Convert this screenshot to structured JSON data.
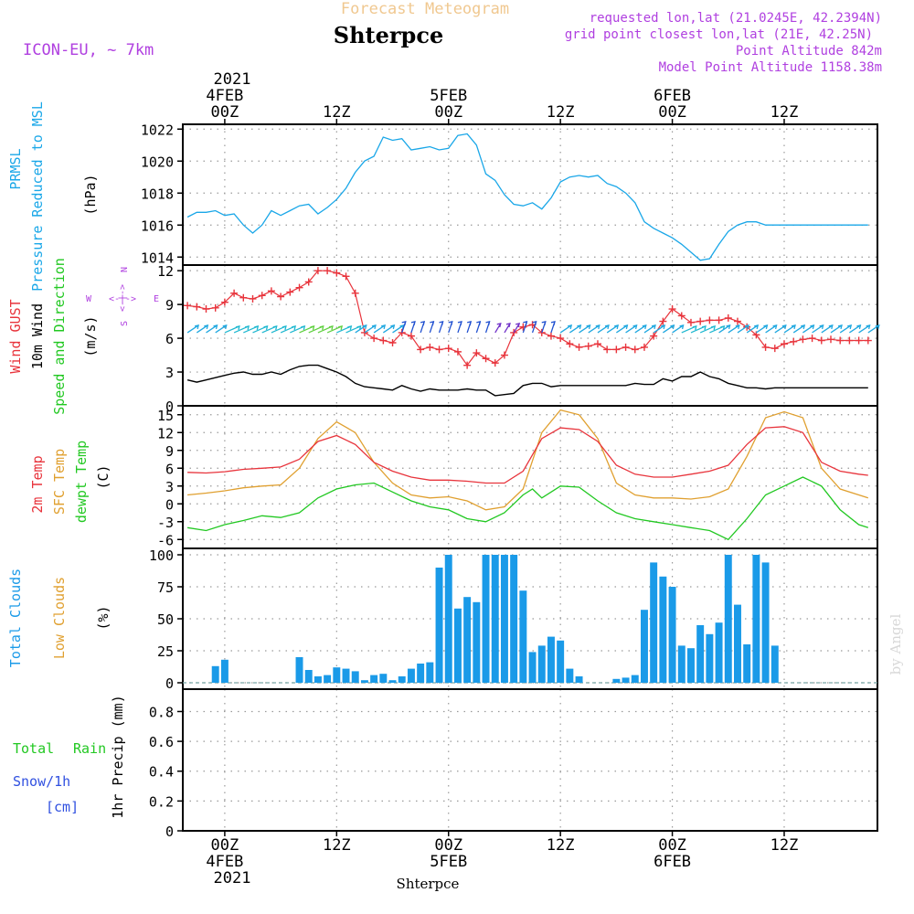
{
  "header": {
    "title": "Forecast Meteogram",
    "station": "Shterpce",
    "model": "ICON-EU, ~ 7km",
    "requested": "requested lon,lat (21.0245E, 42.2394N)",
    "gridpoint": "grid point closest lon,lat (21E, 42.25N)",
    "point_alt": "Point Altitude 842m",
    "model_alt": "Model Point Altitude 1158.38m",
    "footer_station": "Shterpce",
    "signature": "by Angel"
  },
  "time_axis": {
    "top_year": "2021",
    "top_labels": [
      {
        "h": 0,
        "time": "00Z",
        "date": "4FEB"
      },
      {
        "h": 12,
        "time": "12Z",
        "date": ""
      },
      {
        "h": 24,
        "time": "00Z",
        "date": "5FEB"
      },
      {
        "h": 36,
        "time": "12Z",
        "date": ""
      },
      {
        "h": 48,
        "time": "00Z",
        "date": "6FEB"
      },
      {
        "h": 60,
        "time": "12Z",
        "date": ""
      }
    ],
    "bottom_year": "2021",
    "bottom_labels": [
      {
        "h": 0,
        "time": "00Z",
        "date": "4FEB"
      },
      {
        "h": 12,
        "time": "12Z",
        "date": ""
      },
      {
        "h": 24,
        "time": "00Z",
        "date": "5FEB"
      },
      {
        "h": 36,
        "time": "12Z",
        "date": ""
      },
      {
        "h": 48,
        "time": "00Z",
        "date": "6FEB"
      },
      {
        "h": 60,
        "time": "12Z",
        "date": ""
      }
    ]
  },
  "labels": {
    "pressure": [
      "PRMSL",
      "Pressure Reduced to MSL"
    ],
    "pressure_unit": "(hPa)",
    "wind": [
      "Wind GUST",
      "10m Wind",
      "Speed and Direction"
    ],
    "wind_unit": "(m/s)",
    "compass": {
      "n": "N",
      "s": "S",
      "w": "W",
      "e": "E",
      "arrow": "<-|->"
    },
    "temp": [
      "2m Temp",
      "SFC Temp",
      "dewpt Temp"
    ],
    "temp_unit": "(C)",
    "clouds": [
      "Total Clouds",
      "Low Clouds"
    ],
    "clouds_unit": "(%)",
    "precip_left": [
      "Total",
      "Rain",
      "Snow/1h",
      "[cm]"
    ],
    "precip_unit": "1hr Precip (mm)"
  },
  "colors": {
    "pressure": "#1aa7e8",
    "gust": "#e8343c",
    "wind_speed": "#000000",
    "t2m": "#e8343c",
    "sfc": "#e0a030",
    "dewpt": "#22c822",
    "total_clouds": "#1a9ae8",
    "rain": "#22c822",
    "snow": "#3050e0",
    "header_title": "#f0c890",
    "purple": "#b040e0"
  },
  "chart_data": [
    {
      "type": "line",
      "title": "PRMSL Pressure Reduced to MSL",
      "ylabel": "(hPa)",
      "ylim": [
        1013.5,
        1022.3
      ],
      "yticks": [
        1014,
        1016,
        1018,
        1020,
        1022
      ],
      "xlim": [
        -4.5,
        70
      ],
      "x_unit": "hours since 2021-02-04 00Z",
      "series": [
        {
          "name": "PRMSL",
          "x": [
            -4,
            -3,
            -2,
            -1,
            0,
            1,
            2,
            3,
            4,
            5,
            6,
            7,
            8,
            9,
            10,
            11,
            12,
            13,
            14,
            15,
            16,
            17,
            18,
            19,
            20,
            21,
            22,
            23,
            24,
            25,
            26,
            27,
            28,
            29,
            30,
            31,
            32,
            33,
            34,
            35,
            36,
            37,
            38,
            39,
            40,
            41,
            42,
            43,
            44,
            45,
            46,
            47,
            48,
            49,
            50,
            51,
            52,
            53,
            54,
            55,
            56,
            57,
            58,
            59,
            60,
            61,
            62,
            63,
            64,
            65,
            66,
            67,
            68,
            69
          ],
          "values": [
            1016.5,
            1016.8,
            1016.8,
            1016.9,
            1016.6,
            1016.7,
            1016.0,
            1015.5,
            1016.0,
            1016.9,
            1016.6,
            1016.9,
            1017.2,
            1017.3,
            1016.7,
            1017.1,
            1017.6,
            1018.3,
            1019.3,
            1020.0,
            1020.3,
            1021.5,
            1021.3,
            1021.4,
            1020.7,
            1020.8,
            1020.9,
            1020.7,
            1020.8,
            1021.6,
            1021.7,
            1021.0,
            1019.2,
            1018.8,
            1017.9,
            1017.3,
            1017.2,
            1017.4,
            1017.0,
            1017.7,
            1018.7,
            1019.0,
            1019.1,
            1019.0,
            1019.1,
            1018.6,
            1018.4,
            1018.0,
            1017.4,
            1016.2,
            1015.8,
            1015.5,
            1015.2,
            1014.8,
            1014.3,
            1013.8,
            1013.9,
            1014.8,
            1015.6,
            1016.0,
            1016.2,
            1016.2,
            1016.0,
            1016.0,
            1016.0,
            1016.0,
            1016.0,
            1016.0,
            1016.0,
            1016.0,
            1016.0,
            1016.0,
            1016.0,
            1016.0
          ]
        }
      ]
    },
    {
      "type": "line",
      "title": "Wind GUST / 10m Wind Speed and Direction",
      "ylabel": "(m/s)",
      "ylim": [
        0,
        12.5
      ],
      "yticks": [
        0,
        3,
        6,
        9,
        12
      ],
      "xlim": [
        -4.5,
        70
      ],
      "x_unit": "hours since 2021-02-04 00Z",
      "series": [
        {
          "name": "Wind GUST",
          "x": [
            -4,
            -3,
            -2,
            -1,
            0,
            1,
            2,
            3,
            4,
            5,
            6,
            7,
            8,
            9,
            10,
            11,
            12,
            13,
            14,
            15,
            16,
            17,
            18,
            19,
            20,
            21,
            22,
            23,
            24,
            25,
            26,
            27,
            28,
            29,
            30,
            31,
            32,
            33,
            34,
            35,
            36,
            37,
            38,
            39,
            40,
            41,
            42,
            43,
            44,
            45,
            46,
            47,
            48,
            49,
            50,
            51,
            52,
            53,
            54,
            55,
            56,
            57,
            58,
            59,
            60,
            61,
            62,
            63,
            64,
            65,
            66,
            67,
            68,
            69
          ],
          "values": [
            8.9,
            8.8,
            8.6,
            8.7,
            9.2,
            10.0,
            9.6,
            9.5,
            9.8,
            10.2,
            9.7,
            10.1,
            10.5,
            11.0,
            12.0,
            12.0,
            11.8,
            11.5,
            10.0,
            6.5,
            6.0,
            5.8,
            5.6,
            6.5,
            6.2,
            5.0,
            5.2,
            5.0,
            5.1,
            4.8,
            3.6,
            4.7,
            4.2,
            3.8,
            4.5,
            6.5,
            7.0,
            7.2,
            6.5,
            6.2,
            6.0,
            5.5,
            5.2,
            5.3,
            5.5,
            5.0,
            5.0,
            5.2,
            5.0,
            5.2,
            6.2,
            7.5,
            8.6,
            8.0,
            7.4,
            7.5,
            7.6,
            7.6,
            7.8,
            7.5,
            7.0,
            6.3,
            5.2,
            5.1,
            5.5,
            5.7,
            5.9,
            6.0,
            5.8,
            5.9,
            5.8,
            5.8,
            5.8,
            5.8
          ]
        },
        {
          "name": "10m Wind",
          "x": [
            -4,
            -3,
            -2,
            -1,
            0,
            1,
            2,
            3,
            4,
            5,
            6,
            7,
            8,
            9,
            10,
            11,
            12,
            13,
            14,
            15,
            16,
            17,
            18,
            19,
            20,
            21,
            22,
            23,
            24,
            25,
            26,
            27,
            28,
            29,
            30,
            31,
            32,
            33,
            34,
            35,
            36,
            37,
            38,
            39,
            40,
            41,
            42,
            43,
            44,
            45,
            46,
            47,
            48,
            49,
            50,
            51,
            52,
            53,
            54,
            55,
            56,
            57,
            58,
            59,
            60,
            61,
            62,
            63,
            64,
            65,
            66,
            67,
            68,
            69
          ],
          "values": [
            2.3,
            2.1,
            2.3,
            2.5,
            2.7,
            2.9,
            3.0,
            2.8,
            2.8,
            3.0,
            2.8,
            3.2,
            3.5,
            3.6,
            3.6,
            3.3,
            3.0,
            2.6,
            2.0,
            1.7,
            1.6,
            1.5,
            1.4,
            1.8,
            1.5,
            1.3,
            1.5,
            1.4,
            1.4,
            1.4,
            1.5,
            1.4,
            1.4,
            0.9,
            1.0,
            1.1,
            1.8,
            2.0,
            2.0,
            1.7,
            1.8,
            1.8,
            1.8,
            1.8,
            1.8,
            1.8,
            1.8,
            1.8,
            2.0,
            1.9,
            1.9,
            2.4,
            2.2,
            2.6,
            2.6,
            3.0,
            2.6,
            2.4,
            2.0,
            1.8,
            1.6,
            1.6,
            1.5,
            1.6,
            1.6,
            1.6,
            1.6,
            1.6,
            1.6,
            1.6,
            1.6,
            1.6,
            1.6,
            1.6
          ]
        }
      ]
    },
    {
      "type": "line",
      "title": "2m Temp / SFC Temp / dewpt Temp",
      "ylabel": "(C)",
      "ylim": [
        -7.5,
        16.5
      ],
      "yticks": [
        -6,
        -3,
        0,
        3,
        6,
        9,
        12,
        15
      ],
      "xlim": [
        -4.5,
        70
      ],
      "x_unit": "hours since 2021-02-04 00Z",
      "series": [
        {
          "name": "2m Temp",
          "x": [
            -4,
            -2,
            0,
            2,
            4,
            6,
            8,
            10,
            12,
            14,
            16,
            18,
            20,
            22,
            24,
            26,
            28,
            30,
            32,
            34,
            36,
            38,
            40,
            42,
            44,
            46,
            48,
            50,
            52,
            54,
            56,
            58,
            60,
            62,
            64,
            66,
            68,
            69
          ],
          "values": [
            5.3,
            5.2,
            5.4,
            5.8,
            6.0,
            6.2,
            7.5,
            10.5,
            11.5,
            10.0,
            7.0,
            5.5,
            4.5,
            4.0,
            4.0,
            3.8,
            3.5,
            3.5,
            5.5,
            11.0,
            12.8,
            12.5,
            10.5,
            6.5,
            5.0,
            4.5,
            4.5,
            5.0,
            5.5,
            6.5,
            10.0,
            12.8,
            13.0,
            12.0,
            7.0,
            5.5,
            5.0,
            4.8
          ]
        },
        {
          "name": "SFC Temp",
          "x": [
            -4,
            -2,
            0,
            2,
            4,
            6,
            8,
            10,
            12,
            14,
            16,
            18,
            20,
            22,
            24,
            26,
            28,
            30,
            32,
            34,
            36,
            38,
            40,
            42,
            44,
            46,
            48,
            50,
            52,
            54,
            56,
            58,
            60,
            62,
            64,
            66,
            68,
            69
          ],
          "values": [
            1.5,
            1.8,
            2.2,
            2.7,
            3.0,
            3.2,
            6.0,
            11.0,
            13.8,
            12.0,
            7.0,
            3.5,
            1.5,
            1.0,
            1.2,
            0.5,
            -1.0,
            -0.5,
            2.5,
            12.0,
            15.8,
            15.0,
            11.0,
            3.5,
            1.5,
            1.0,
            1.0,
            0.8,
            1.2,
            2.5,
            8.0,
            14.5,
            15.5,
            14.5,
            6.0,
            2.5,
            1.5,
            1.0
          ]
        },
        {
          "name": "dewpt Temp",
          "x": [
            -4,
            -2,
            0,
            2,
            4,
            6,
            8,
            10,
            12,
            14,
            16,
            18,
            20,
            22,
            24,
            26,
            28,
            30,
            31,
            32,
            33,
            34,
            36,
            38,
            40,
            42,
            44,
            46,
            48,
            50,
            52,
            54,
            56,
            58,
            60,
            62,
            64,
            66,
            68,
            69
          ],
          "values": [
            -4.0,
            -4.5,
            -3.5,
            -2.8,
            -2.0,
            -2.3,
            -1.5,
            1.0,
            2.5,
            3.2,
            3.5,
            2.0,
            0.5,
            -0.5,
            -1.0,
            -2.5,
            -3.0,
            -1.5,
            0.0,
            1.5,
            2.5,
            1.0,
            3.0,
            2.8,
            0.5,
            -1.5,
            -2.5,
            -3.0,
            -3.5,
            -4.0,
            -4.5,
            -6.0,
            -2.5,
            1.5,
            3.0,
            4.5,
            3.0,
            -1.0,
            -3.5,
            -4.0
          ]
        }
      ]
    },
    {
      "type": "bar",
      "title": "Total Clouds / Low Clouds",
      "ylabel": "(%)",
      "ylim": [
        -5,
        105
      ],
      "yticks": [
        0,
        25,
        50,
        75,
        100
      ],
      "xlim": [
        -4.5,
        70
      ],
      "x_unit": "hours since 2021-02-04 00Z",
      "series": [
        {
          "name": "Total Clouds",
          "x": [
            -4,
            -3,
            -2,
            -1,
            0,
            1,
            2,
            3,
            4,
            5,
            6,
            7,
            8,
            9,
            10,
            11,
            12,
            13,
            14,
            15,
            16,
            17,
            18,
            19,
            20,
            21,
            22,
            23,
            24,
            25,
            26,
            27,
            28,
            29,
            30,
            31,
            32,
            33,
            34,
            35,
            36,
            37,
            38,
            39,
            40,
            41,
            42,
            43,
            44,
            45,
            46,
            47,
            48,
            49,
            50,
            51,
            52,
            53,
            54,
            55,
            56,
            57,
            58,
            59,
            60,
            61,
            62,
            63,
            64,
            65,
            66,
            67,
            68,
            69
          ],
          "values": [
            0,
            0,
            0,
            13,
            18,
            0,
            0,
            0,
            0,
            0,
            0,
            0,
            20,
            10,
            5,
            6,
            12,
            11,
            9,
            2,
            6,
            7,
            2,
            5,
            11,
            15,
            16,
            90,
            100,
            58,
            67,
            63,
            100,
            100,
            100,
            100,
            72,
            24,
            29,
            36,
            33,
            11,
            5,
            0,
            0,
            0,
            3,
            4,
            6,
            57,
            94,
            83,
            75,
            29,
            27,
            45,
            38,
            47,
            100,
            61,
            30,
            100,
            94,
            29,
            0,
            0,
            0,
            0,
            0,
            0,
            0,
            0,
            0,
            0
          ]
        }
      ]
    },
    {
      "type": "bar",
      "title": "1hr Precip",
      "ylabel": "1hr Precip (mm)",
      "ylim": [
        0,
        0.95
      ],
      "yticks": [
        0,
        0.2,
        0.4,
        0.6,
        0.8
      ],
      "xlim": [
        -4.5,
        70
      ],
      "x_unit": "hours since 2021-02-04 00Z",
      "series": [
        {
          "name": "Total Rain",
          "values": []
        },
        {
          "name": "Snow/1h",
          "values": []
        }
      ]
    }
  ]
}
